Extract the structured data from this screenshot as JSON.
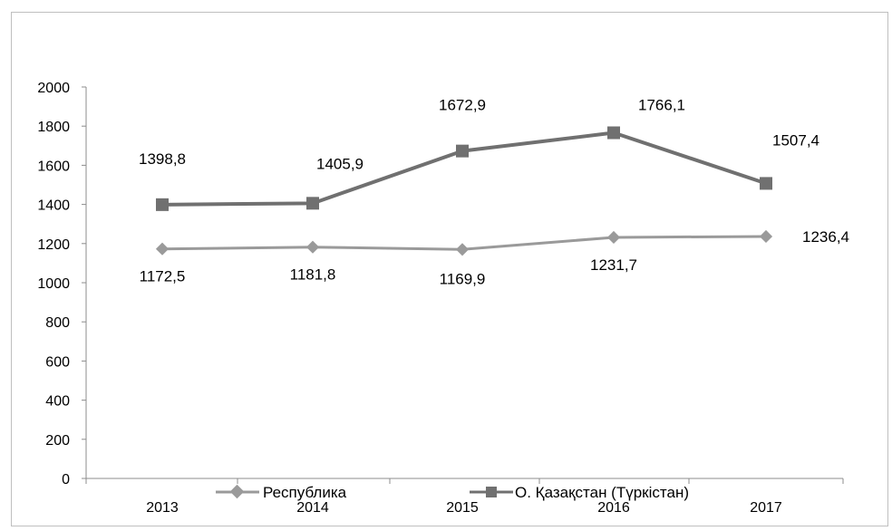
{
  "chart_data": {
    "type": "line",
    "categories": [
      "2013",
      "2014",
      "2015",
      "2016",
      "2017"
    ],
    "ylim": [
      0,
      2000
    ],
    "yticks": [
      0,
      200,
      400,
      600,
      800,
      1000,
      1200,
      1400,
      1600,
      1800,
      2000
    ],
    "series": [
      {
        "name": "Республика",
        "values": [
          1172.5,
          1181.8,
          1169.9,
          1231.7,
          1236.4
        ],
        "labels": [
          "1172,5",
          "1181,8",
          "1169,9",
          "1231,7",
          "1236,4"
        ],
        "color": "#9a9a9a",
        "marker": "diamond"
      },
      {
        "name": "О. Қазақстан (Түркістан)",
        "values": [
          1398.8,
          1405.9,
          1672.9,
          1766.1,
          1507.4
        ],
        "labels": [
          "1398,8",
          "1405,9",
          "1672,9",
          "1766,1",
          "1507,4"
        ],
        "color": "#707070",
        "marker": "square"
      }
    ],
    "legend": "bottom",
    "grid": false
  }
}
